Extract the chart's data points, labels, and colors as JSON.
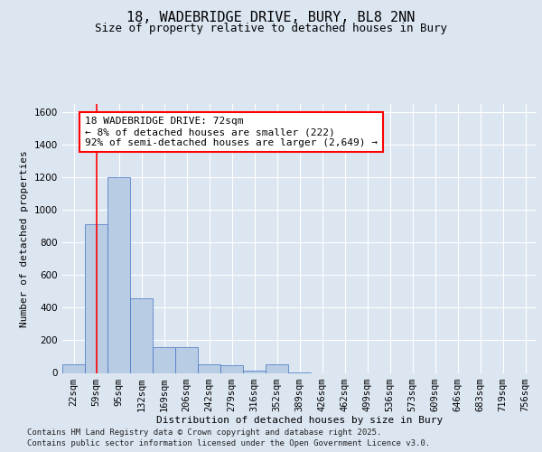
{
  "title_line1": "18, WADEBRIDGE DRIVE, BURY, BL8 2NN",
  "title_line2": "Size of property relative to detached houses in Bury",
  "xlabel": "Distribution of detached houses by size in Bury",
  "ylabel": "Number of detached properties",
  "bar_color": "#b8cce4",
  "bar_edge_color": "#4472c4",
  "categories": [
    "22sqm",
    "59sqm",
    "95sqm",
    "132sqm",
    "169sqm",
    "206sqm",
    "242sqm",
    "279sqm",
    "316sqm",
    "352sqm",
    "389sqm",
    "426sqm",
    "462sqm",
    "499sqm",
    "536sqm",
    "573sqm",
    "609sqm",
    "646sqm",
    "683sqm",
    "719sqm",
    "756sqm"
  ],
  "values": [
    50,
    910,
    1200,
    460,
    160,
    160,
    55,
    45,
    15,
    50,
    5,
    0,
    0,
    0,
    0,
    0,
    0,
    0,
    0,
    0,
    0
  ],
  "ylim": [
    0,
    1650
  ],
  "yticks": [
    0,
    200,
    400,
    600,
    800,
    1000,
    1200,
    1400,
    1600
  ],
  "property_line_x": 1.0,
  "annotation_line1": "18 WADEBRIDGE DRIVE: 72sqm",
  "annotation_line2": "← 8% of detached houses are smaller (222)",
  "annotation_line3": "92% of semi-detached houses are larger (2,649) →",
  "footer_line1": "Contains HM Land Registry data © Crown copyright and database right 2025.",
  "footer_line2": "Contains public sector information licensed under the Open Government Licence v3.0.",
  "bg_color": "#dce6f1",
  "plot_bg_color": "#dce6f1",
  "grid_color": "white",
  "title_fontsize": 11,
  "subtitle_fontsize": 9,
  "label_fontsize": 8,
  "tick_fontsize": 7.5,
  "footer_fontsize": 6.5,
  "annot_fontsize": 8
}
